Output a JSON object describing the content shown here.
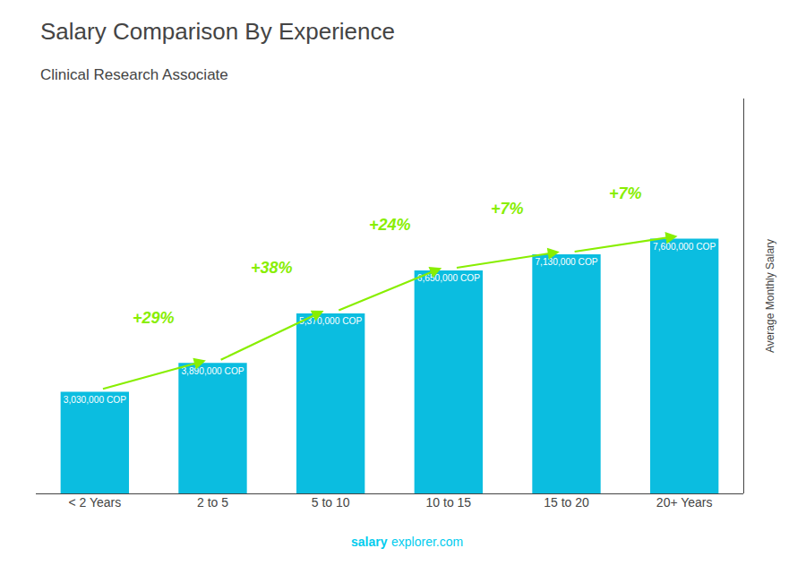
{
  "chart_data": {
    "type": "bar",
    "title": "Salary Comparison By Experience",
    "subtitle": "Clinical Research Associate",
    "ylabel": "Average Monthly Salary",
    "categories": [
      "< 2 Years",
      "2 to 5",
      "5 to 10",
      "10 to 15",
      "15 to 20",
      "20+ Years"
    ],
    "values": [
      3030000,
      3890000,
      5370000,
      6650000,
      7130000,
      7600000
    ],
    "value_labels": [
      "3,030,000 COP",
      "3,890,000 COP",
      "5,370,000 COP",
      "6,650,000 COP",
      "7,130,000 COP",
      "7,600,000 COP"
    ],
    "data_labels": true,
    "color": "#0BBDE0",
    "ylim": [
      0,
      11780000
    ],
    "tick_labels": "x",
    "grid": false,
    "annotations": [
      {
        "text": "+29%",
        "category": "2 to 5",
        "color": "#88EE00"
      },
      {
        "text": "+38%",
        "category": "5 to 10",
        "color": "#88EE00"
      },
      {
        "text": "+24%",
        "category": "10 to 15",
        "color": "#88EE00"
      },
      {
        "text": "+7%",
        "category": "15 to 20",
        "color": "#88EE00"
      },
      {
        "text": "+7%",
        "category": "20+ Years",
        "color": "#88EE00"
      }
    ],
    "watermark": {
      "texts": [
        "salary",
        "explorer.com"
      ],
      "color": "#00CCEE"
    }
  }
}
